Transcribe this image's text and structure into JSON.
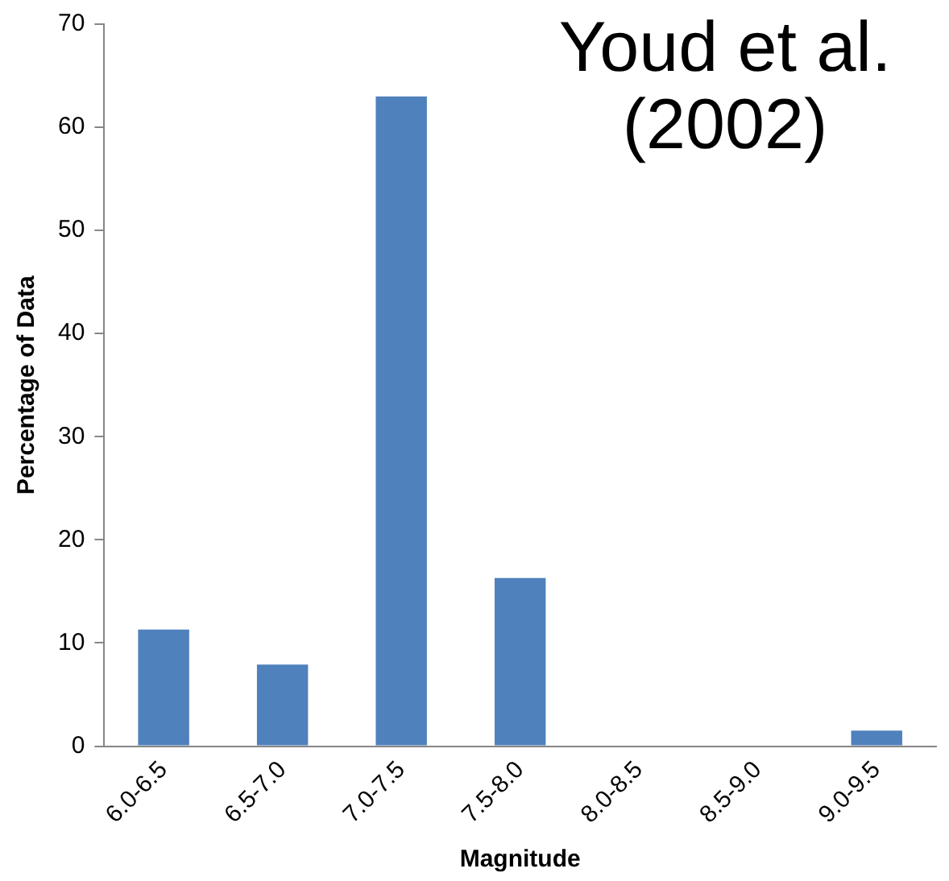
{
  "chart_data": {
    "type": "bar",
    "xlabel": "Magnitude",
    "ylabel": "Percentage of Data",
    "annotations": [
      "Youd et al. (2002)"
    ],
    "categories": [
      "6.0-6.5",
      "6.5-7.0",
      "7.0-7.5",
      "7.5-8.0",
      "8.0-8.5",
      "8.5-9.0",
      "9.0-9.5"
    ],
    "values": [
      11.3,
      7.9,
      63,
      16.3,
      0,
      0,
      1.5
    ],
    "color": "#4f81bd",
    "ylim": [
      0,
      70
    ],
    "yticks": [
      0,
      10,
      20,
      30,
      40,
      50,
      60,
      70
    ],
    "grid": false,
    "legend": false
  }
}
